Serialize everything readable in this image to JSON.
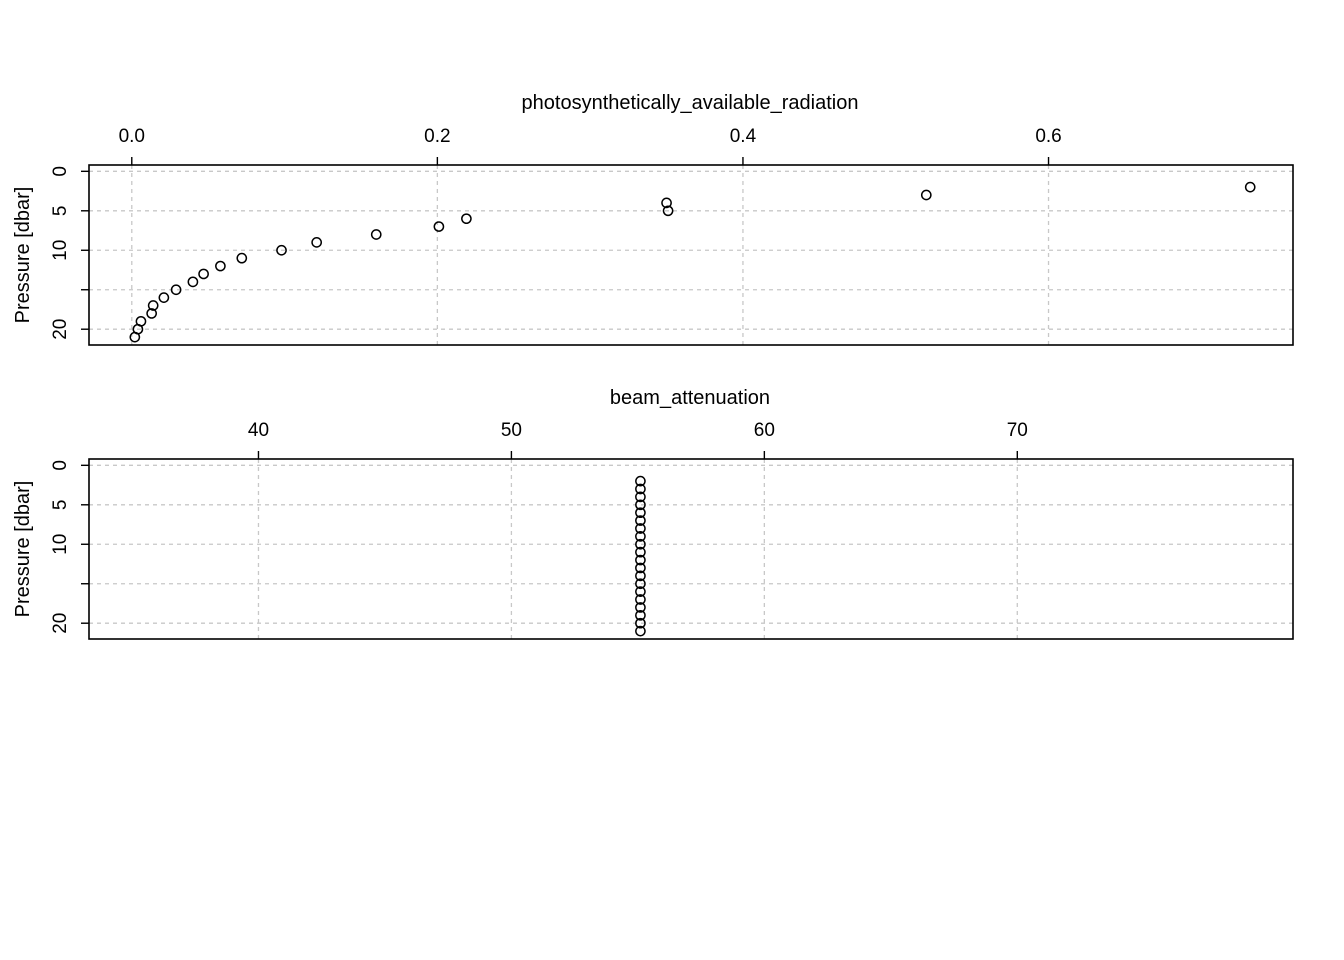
{
  "chart_data": [
    {
      "type": "scatter",
      "title": "photosynthetically_available_radiation",
      "xlabel": "photosynthetically_available_radiation",
      "ylabel": "Pressure [dbar]",
      "xlim": [
        -0.028,
        0.76
      ],
      "ylim": [
        22,
        -0.8
      ],
      "x_axis_position": "top",
      "y_inverted": true,
      "grid": true,
      "x_ticks": [
        0.0,
        0.2,
        0.4,
        0.6
      ],
      "x_tick_labels": [
        "0.0",
        "0.2",
        "0.4",
        "0.6"
      ],
      "y_ticks": [
        0,
        5,
        10,
        15,
        20
      ],
      "y_tick_labels": [
        "0",
        "5",
        "10",
        "",
        "20"
      ],
      "series": [
        {
          "x": [
            0.732,
            0.52,
            0.35,
            0.351,
            0.219,
            0.201,
            0.16,
            0.121,
            0.098,
            0.072,
            0.058,
            0.047,
            0.04,
            0.029,
            0.021,
            0.014,
            0.013,
            0.006,
            0.004,
            0.002
          ],
          "y": [
            2,
            3,
            4,
            5,
            6,
            7,
            8,
            9,
            10,
            11,
            12,
            13,
            14,
            15,
            16,
            17,
            18,
            19,
            20,
            21
          ]
        }
      ]
    },
    {
      "type": "scatter",
      "title": "beam_attenuation",
      "xlabel": "beam_attenuation",
      "ylabel": "Pressure [dbar]",
      "xlim": [
        33.3,
        80.9
      ],
      "ylim": [
        22,
        -0.8
      ],
      "x_axis_position": "top",
      "y_inverted": true,
      "grid": true,
      "x_ticks": [
        40,
        50,
        60,
        70
      ],
      "x_tick_labels": [
        "40",
        "50",
        "60",
        "70"
      ],
      "y_ticks": [
        0,
        5,
        10,
        15,
        20
      ],
      "y_tick_labels": [
        "0",
        "5",
        "10",
        "",
        "20"
      ],
      "series": [
        {
          "x": [
            55.1,
            55.1,
            55.1,
            55.1,
            55.1,
            55.1,
            55.1,
            55.1,
            55.1,
            55.1,
            55.1,
            55.1,
            55.1,
            55.1,
            55.1,
            55.1,
            55.1,
            55.1,
            55.1,
            55.1
          ],
          "y": [
            2,
            3,
            4,
            5,
            6,
            7,
            8,
            9,
            10,
            11,
            12,
            13,
            14,
            15,
            16,
            17,
            18,
            19,
            20,
            21
          ]
        }
      ]
    }
  ]
}
